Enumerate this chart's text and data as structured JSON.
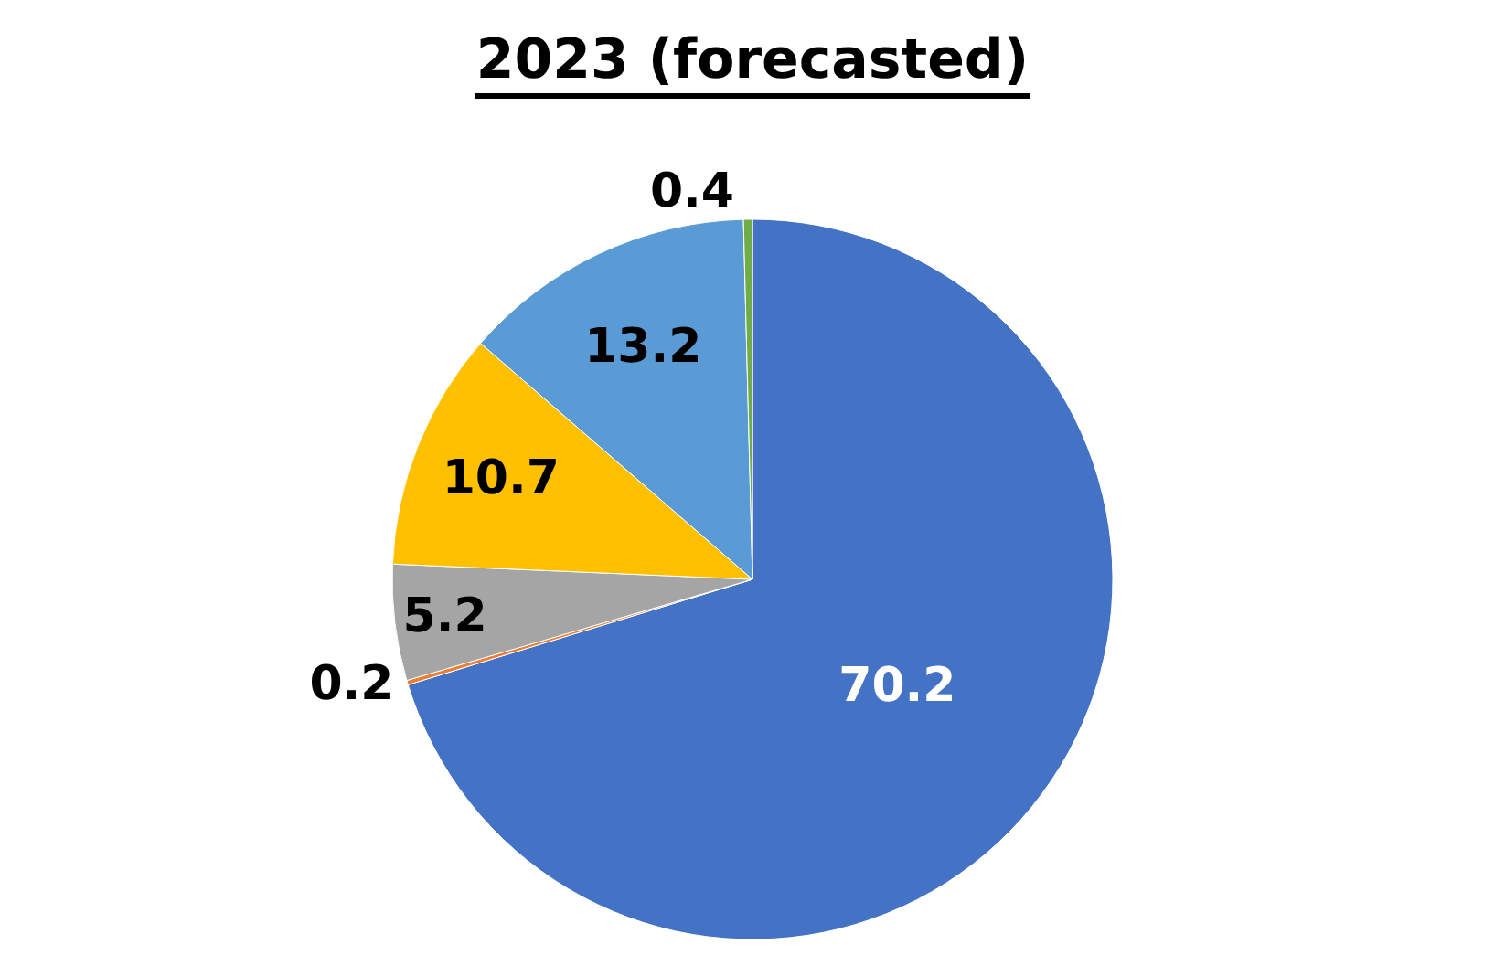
{
  "chart_data": {
    "type": "pie",
    "title": "2023 (forecasted)",
    "categories": [
      null,
      null,
      null,
      null,
      null,
      null
    ],
    "values": [
      70.2,
      0.2,
      5.2,
      10.7,
      13.2,
      0.4
    ],
    "colors": [
      "#4472c4",
      "#ed7d31",
      "#a5a5a5",
      "#ffc000",
      "#5b9bd5",
      "#70ad47"
    ],
    "data_labels": true,
    "legend": false
  }
}
